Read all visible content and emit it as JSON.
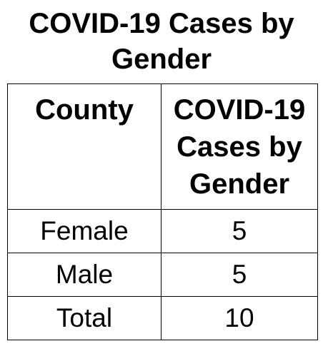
{
  "title": "COVID-19 Cases by Gender",
  "table": {
    "headers": [
      "County",
      "COVID-19 Cases by Gender"
    ],
    "rows": [
      [
        "Female",
        "5"
      ],
      [
        "Male",
        "5"
      ],
      [
        "Total",
        "10"
      ]
    ]
  },
  "colors": {
    "text": "#000000",
    "border": "#000000",
    "background": "#ffffff"
  }
}
